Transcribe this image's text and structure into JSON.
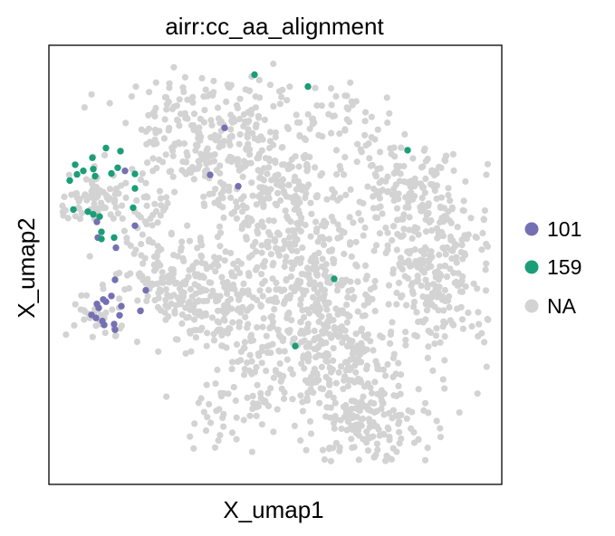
{
  "chart_data": {
    "type": "scatter",
    "title": "airr:cc_aa_alignment",
    "xlabel": "X_umap1",
    "ylabel": "X_umap2",
    "xlim": [
      0,
      100
    ],
    "ylim": [
      0,
      100
    ],
    "grid": false,
    "ticks": false,
    "legend_position": "right",
    "series": [
      {
        "name": "NA",
        "color": "#d3d3d3",
        "points": []
      },
      {
        "name": "101",
        "color": "#7570b3",
        "points": [
          [
            38.8,
            81.2
          ],
          [
            35.6,
            70.5
          ],
          [
            41.8,
            67.9
          ],
          [
            16.8,
            71.4
          ],
          [
            19.0,
            58.9
          ],
          [
            10.6,
            59.8
          ],
          [
            10.8,
            56.2
          ],
          [
            14.8,
            53.9
          ],
          [
            14.6,
            46.6
          ],
          [
            12.6,
            41.6
          ],
          [
            10.6,
            41.1
          ],
          [
            20.2,
            39.5
          ],
          [
            11.0,
            40.2
          ],
          [
            15.6,
            38.5
          ],
          [
            16.0,
            40.6
          ],
          [
            9.4,
            38.6
          ],
          [
            10.4,
            37.9
          ],
          [
            11.8,
            37.2
          ],
          [
            12.2,
            36.3
          ],
          [
            14.4,
            36.5
          ],
          [
            14.6,
            35.2
          ],
          [
            21.4,
            44.2
          ],
          [
            13.8,
            42.9
          ],
          [
            12.0,
            42.1
          ]
        ]
      },
      {
        "name": "159",
        "color": "#1b9e77",
        "points": [
          [
            45.4,
            93.3
          ],
          [
            57.2,
            90.6
          ],
          [
            79.2,
            76.1
          ],
          [
            12.6,
            76.6
          ],
          [
            15.8,
            75.9
          ],
          [
            9.6,
            74.4
          ],
          [
            5.8,
            72.8
          ],
          [
            7.6,
            71.4
          ],
          [
            9.8,
            71.8
          ],
          [
            10.2,
            70.2
          ],
          [
            6.2,
            70.6
          ],
          [
            4.6,
            69.2
          ],
          [
            15.2,
            72.1
          ],
          [
            13.8,
            70.8
          ],
          [
            19.0,
            70.7
          ],
          [
            19.0,
            67.4
          ],
          [
            18.6,
            63.0
          ],
          [
            5.4,
            62.6
          ],
          [
            8.6,
            62.1
          ],
          [
            9.8,
            61.5
          ],
          [
            11.2,
            61.0
          ],
          [
            11.6,
            57.5
          ],
          [
            11.6,
            55.9
          ],
          [
            14.4,
            56.2
          ],
          [
            63.0,
            46.8
          ],
          [
            54.4,
            31.5
          ]
        ]
      }
    ]
  },
  "legend": {
    "items": [
      {
        "label": "101",
        "color": "#7570b3"
      },
      {
        "label": "159",
        "color": "#1b9e77"
      },
      {
        "label": "NA",
        "color": "#d3d3d3"
      }
    ]
  }
}
